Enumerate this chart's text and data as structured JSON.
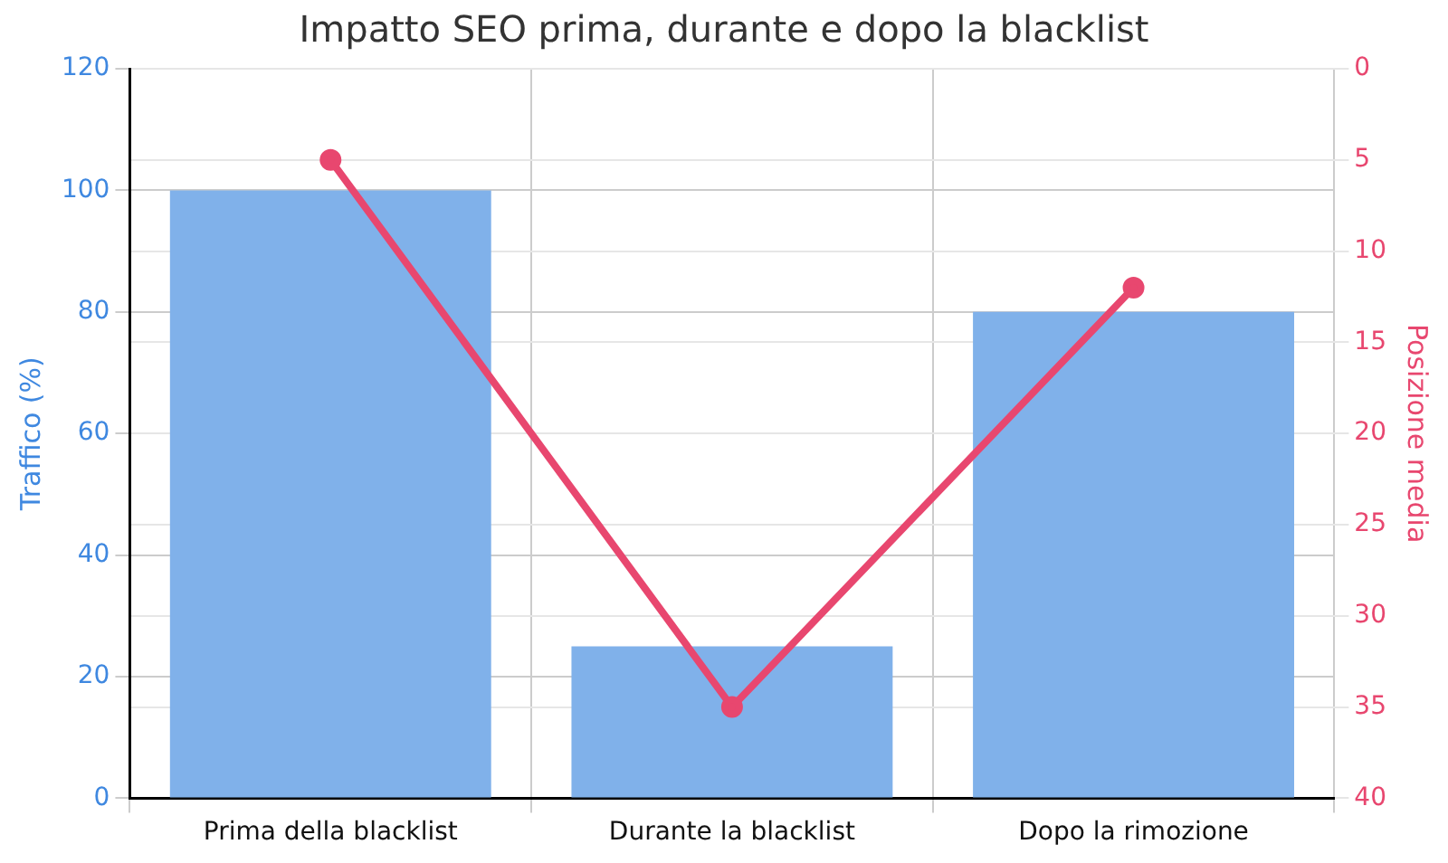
{
  "chart_data": {
    "type": "bar",
    "title": "Impatto SEO prima, durante e dopo la blacklist",
    "ylabel": "Traffico (%)",
    "y2label": "Posizione media",
    "categories": [
      "Prima della blacklist",
      "Durante la blacklist",
      "Dopo la rimozione"
    ],
    "series": [
      {
        "color": "#80b1ea",
        "values": [
          100,
          25,
          80
        ]
      },
      {
        "type": "line",
        "axis": "y2",
        "color": "#e8476f",
        "values": [
          5,
          35,
          12
        ],
        "marker": "circle"
      }
    ],
    "ylim": [
      0,
      120
    ],
    "yticks": [
      0,
      20,
      40,
      60,
      80,
      100,
      120
    ],
    "y2lim": [
      40,
      0
    ],
    "y2ticks": [
      0,
      5,
      10,
      15,
      20,
      25,
      30,
      35,
      40
    ],
    "grid": true,
    "legend": false
  }
}
